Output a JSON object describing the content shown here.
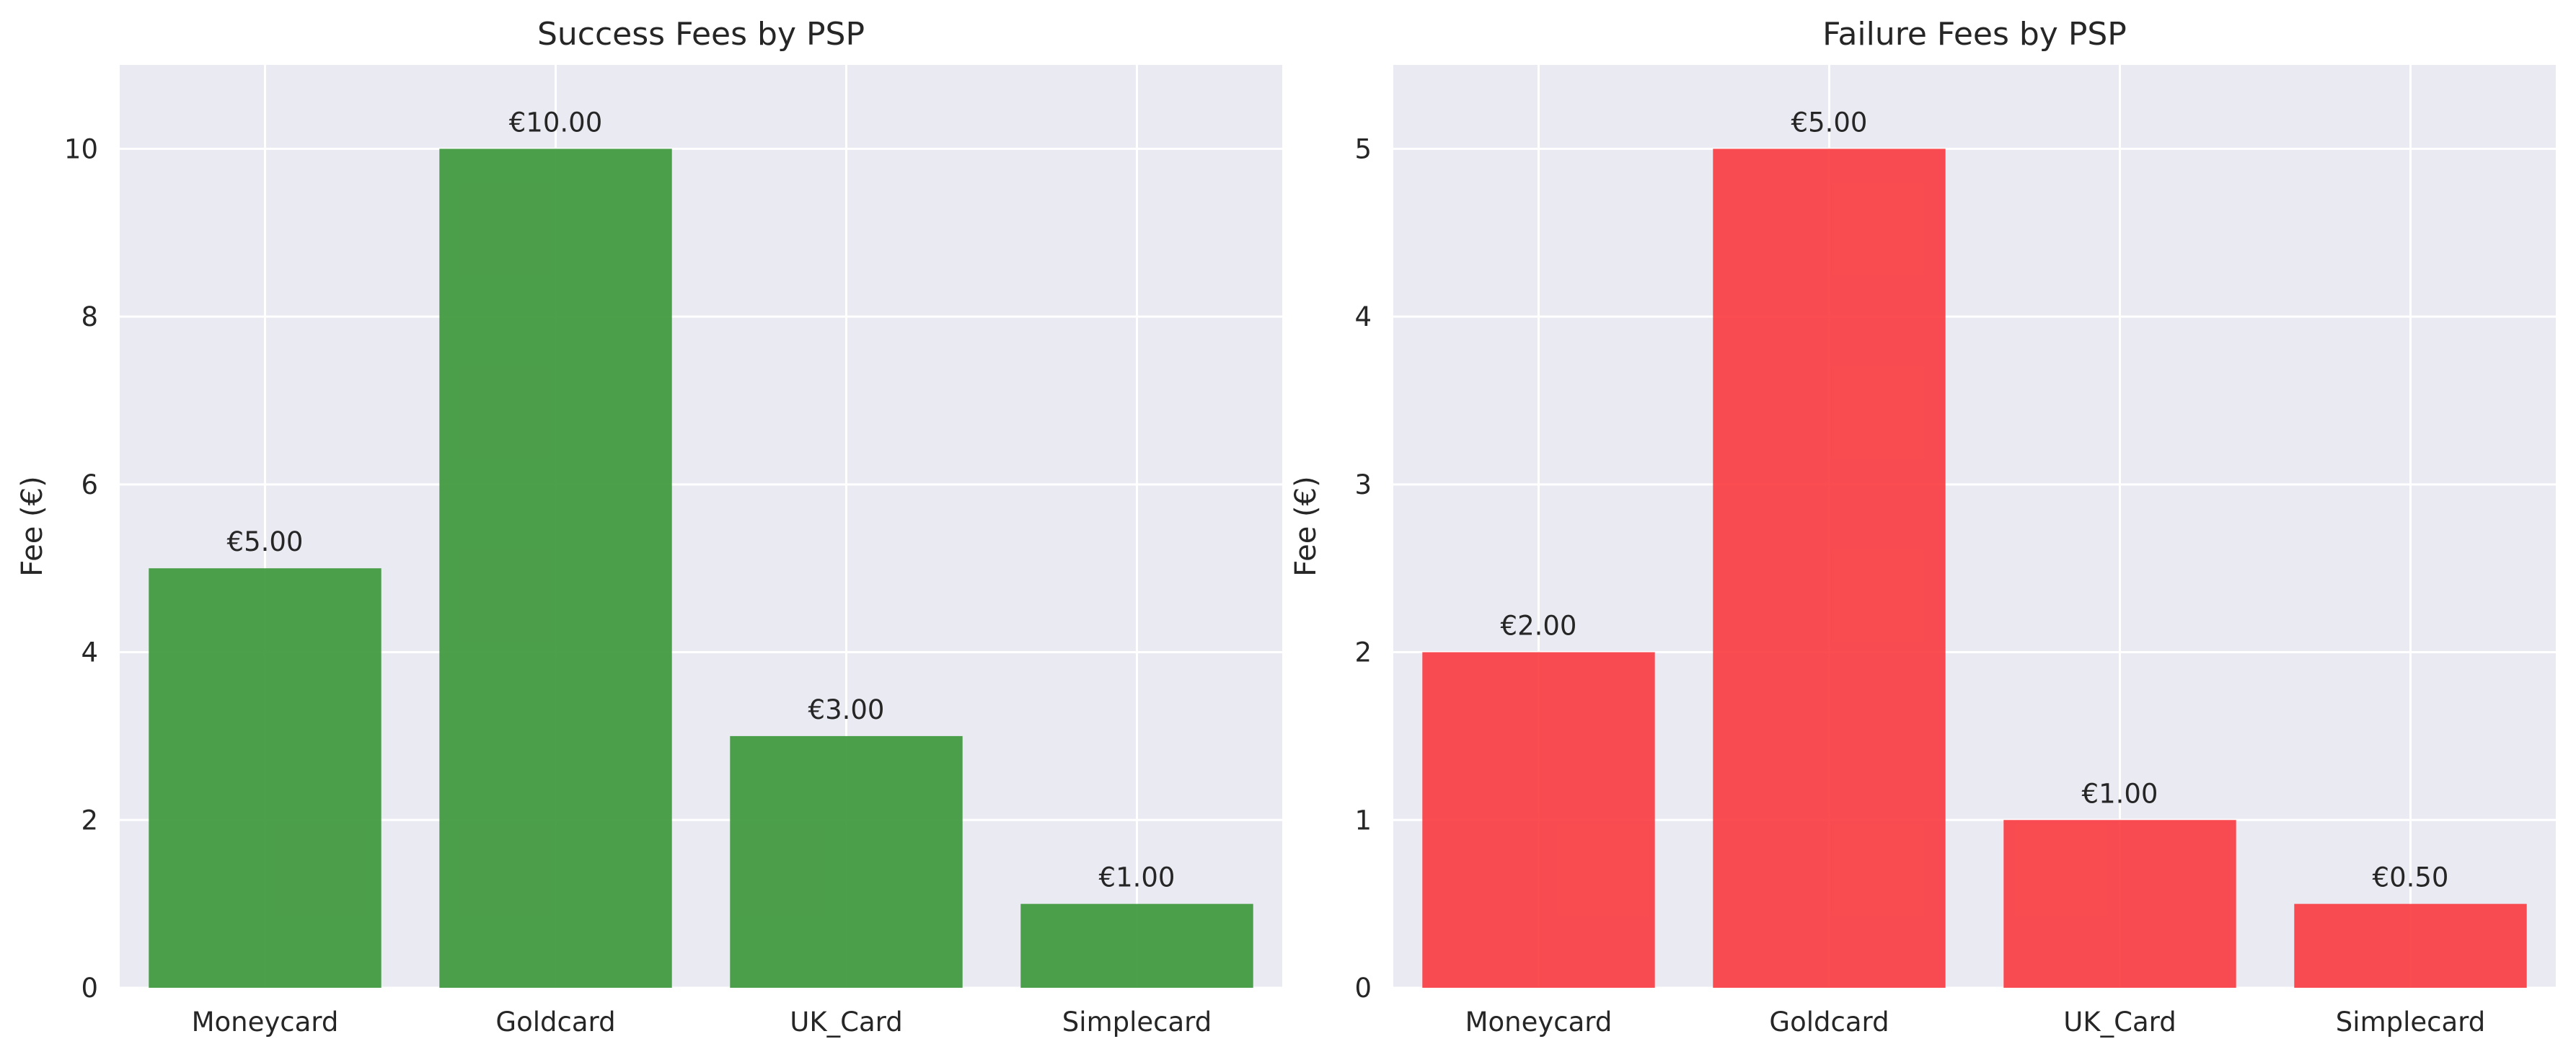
{
  "chart_data": [
    {
      "type": "bar",
      "title": "Success Fees by PSP",
      "xlabel": "",
      "ylabel": "Fee (€)",
      "categories": [
        "Moneycard",
        "Goldcard",
        "UK_Card",
        "Simplecard"
      ],
      "values": [
        5.0,
        10.0,
        3.0,
        1.0
      ],
      "value_labels": [
        "€5.00",
        "€10.00",
        "€3.00",
        "€1.00"
      ],
      "ylim": [
        0,
        11
      ],
      "yticks": [
        0,
        2,
        4,
        6,
        8,
        10
      ],
      "bar_color": "#3a9637",
      "background": "#eaeaf2",
      "grid": true
    },
    {
      "type": "bar",
      "title": "Failure Fees by PSP",
      "xlabel": "",
      "ylabel": "Fee (€)",
      "categories": [
        "Moneycard",
        "Goldcard",
        "UK_Card",
        "Simplecard"
      ],
      "values": [
        2.0,
        5.0,
        1.0,
        0.5
      ],
      "value_labels": [
        "€2.00",
        "€5.00",
        "€1.00",
        "€0.50"
      ],
      "ylim": [
        0,
        5.5
      ],
      "yticks": [
        0,
        1,
        2,
        3,
        4,
        5
      ],
      "bar_color": "#f93a3f",
      "background": "#eaeaf2",
      "grid": true
    }
  ]
}
